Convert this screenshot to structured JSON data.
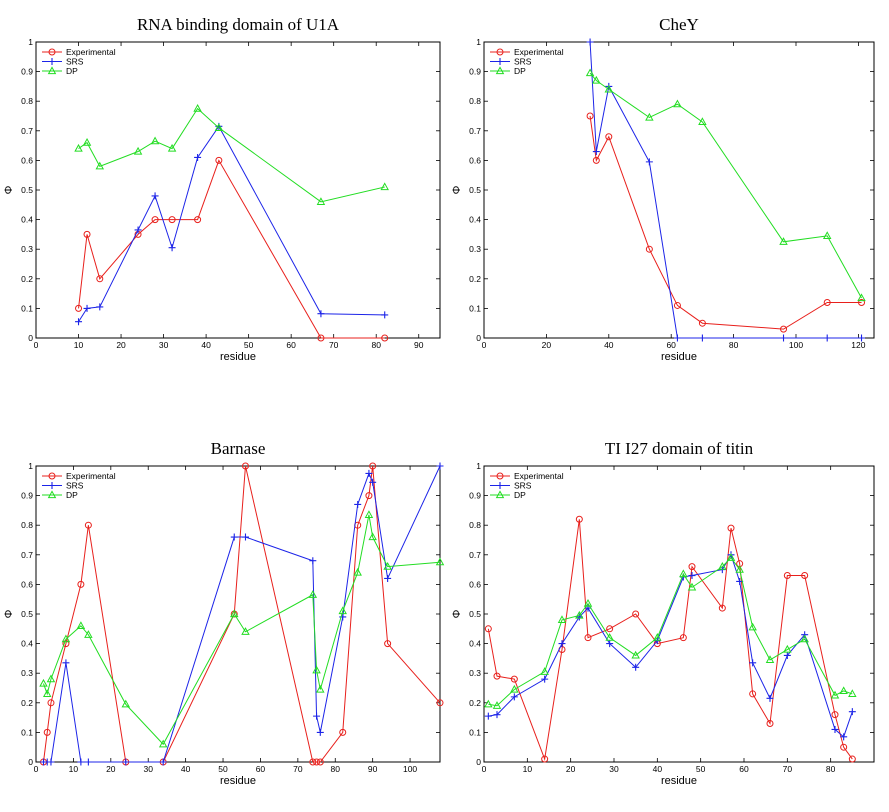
{
  "colors": {
    "Experimental": "#e8201c",
    "SRS": "#1c24e8",
    "DP": "#22dd22"
  },
  "markers": {
    "Experimental": "circle",
    "SRS": "plus",
    "DP": "triangle"
  },
  "chart_data": [
    {
      "type": "line",
      "title": "RNA binding domain of U1A",
      "xlabel": "residue",
      "ylabel": "Φ",
      "xlim": [
        0,
        95
      ],
      "ylim": [
        0,
        1
      ],
      "xticks": [
        0,
        10,
        20,
        30,
        40,
        50,
        60,
        70,
        80,
        90
      ],
      "yticks": [
        0,
        0.1,
        0.2,
        0.3,
        0.4,
        0.5,
        0.6,
        0.7,
        0.8,
        0.9,
        1
      ],
      "legend": "top-left",
      "series": [
        {
          "name": "Experimental",
          "x": [
            10,
            12,
            15,
            24,
            28,
            32,
            38,
            43,
            67,
            82
          ],
          "y": [
            0.1,
            0.35,
            0.2,
            0.35,
            0.4,
            0.4,
            0.4,
            0.6,
            0.0,
            0.0
          ]
        },
        {
          "name": "SRS",
          "x": [
            10,
            12,
            15,
            24,
            28,
            32,
            38,
            43,
            67,
            82
          ],
          "y": [
            0.055,
            0.1,
            0.105,
            0.365,
            0.48,
            0.305,
            0.61,
            0.715,
            0.082,
            0.078
          ]
        },
        {
          "name": "DP",
          "x": [
            10,
            12,
            15,
            24,
            28,
            32,
            38,
            43,
            67,
            82
          ],
          "y": [
            0.64,
            0.66,
            0.58,
            0.63,
            0.665,
            0.64,
            0.775,
            0.71,
            0.46,
            0.51
          ]
        }
      ]
    },
    {
      "type": "line",
      "title": "CheY",
      "xlabel": "residue",
      "ylabel": "Φ",
      "xlim": [
        0,
        125
      ],
      "ylim": [
        0,
        1
      ],
      "xticks": [
        0,
        20,
        40,
        60,
        80,
        100,
        120
      ],
      "yticks": [
        0,
        0.1,
        0.2,
        0.3,
        0.4,
        0.5,
        0.6,
        0.7,
        0.8,
        0.9,
        1
      ],
      "legend": "top-left",
      "series": [
        {
          "name": "Experimental",
          "x": [
            34,
            36,
            40,
            53,
            62,
            70,
            96,
            110,
            121
          ],
          "y": [
            0.75,
            0.6,
            0.68,
            0.3,
            0.11,
            0.05,
            0.03,
            0.12,
            0.12
          ]
        },
        {
          "name": "SRS",
          "x": [
            34,
            36,
            40,
            53,
            62,
            70,
            96,
            110,
            121
          ],
          "y": [
            1.0,
            0.63,
            0.85,
            0.595,
            0.0,
            0.0,
            0.0,
            0.0,
            0.0
          ]
        },
        {
          "name": "DP",
          "x": [
            34,
            36,
            40,
            53,
            62,
            70,
            96,
            110,
            121
          ],
          "y": [
            0.895,
            0.87,
            0.84,
            0.745,
            0.79,
            0.73,
            0.325,
            0.345,
            0.135
          ]
        }
      ]
    },
    {
      "type": "line",
      "title": "Barnase",
      "xlabel": "residue",
      "ylabel": "Φ",
      "xlim": [
        0,
        108
      ],
      "ylim": [
        0,
        1
      ],
      "xticks": [
        0,
        10,
        20,
        30,
        40,
        50,
        60,
        70,
        80,
        90,
        100
      ],
      "yticks": [
        0,
        0.1,
        0.2,
        0.3,
        0.4,
        0.5,
        0.6,
        0.7,
        0.8,
        0.9,
        1
      ],
      "legend": "top-left",
      "series": [
        {
          "name": "Experimental",
          "x": [
            2,
            3,
            4,
            8,
            12,
            14,
            24,
            34,
            53,
            56,
            74,
            75,
            76,
            82,
            86,
            89,
            90,
            94,
            108
          ],
          "y": [
            0.0,
            0.1,
            0.2,
            0.4,
            0.6,
            0.8,
            0.0,
            0.0,
            0.5,
            1.0,
            0.0,
            0.0,
            0.0,
            0.1,
            0.8,
            0.9,
            1.0,
            0.4,
            0.2
          ]
        },
        {
          "name": "SRS",
          "x": [
            2,
            3,
            4,
            8,
            12,
            14,
            24,
            34,
            53,
            56,
            74,
            75,
            76,
            82,
            86,
            89,
            90,
            94,
            108
          ],
          "y": [
            0.0,
            0.0,
            0.0,
            0.335,
            0.0,
            0.0,
            0.0,
            0.0,
            0.76,
            0.76,
            0.68,
            0.155,
            0.1,
            0.49,
            0.87,
            0.975,
            0.945,
            0.62,
            1.0
          ]
        },
        {
          "name": "DP",
          "x": [
            2,
            3,
            4,
            8,
            12,
            14,
            24,
            34,
            53,
            56,
            74,
            75,
            76,
            82,
            86,
            89,
            90,
            94,
            108
          ],
          "y": [
            0.265,
            0.23,
            0.28,
            0.415,
            0.46,
            0.43,
            0.195,
            0.06,
            0.5,
            0.44,
            0.565,
            0.31,
            0.245,
            0.51,
            0.64,
            0.835,
            0.76,
            0.66,
            0.675
          ]
        }
      ]
    },
    {
      "type": "line",
      "title": "TI I27 domain of titin",
      "xlabel": "residue",
      "ylabel": "Φ",
      "xlim": [
        0,
        90
      ],
      "ylim": [
        0,
        1
      ],
      "xticks": [
        0,
        10,
        20,
        30,
        40,
        50,
        60,
        70,
        80
      ],
      "yticks": [
        0,
        0.1,
        0.2,
        0.3,
        0.4,
        0.5,
        0.6,
        0.7,
        0.8,
        0.9,
        1
      ],
      "legend": "top-left",
      "series": [
        {
          "name": "Experimental",
          "x": [
            1,
            3,
            7,
            14,
            18,
            22,
            24,
            29,
            35,
            40,
            46,
            48,
            55,
            57,
            59,
            62,
            66,
            70,
            74,
            81,
            83,
            85
          ],
          "y": [
            0.45,
            0.29,
            0.28,
            0.01,
            0.38,
            0.82,
            0.42,
            0.45,
            0.5,
            0.4,
            0.42,
            0.66,
            0.52,
            0.79,
            0.67,
            0.23,
            0.13,
            0.63,
            0.63,
            0.16,
            0.05,
            0.01
          ]
        },
        {
          "name": "SRS",
          "x": [
            1,
            3,
            7,
            14,
            18,
            22,
            24,
            29,
            35,
            40,
            46,
            48,
            55,
            57,
            59,
            62,
            66,
            70,
            74,
            81,
            83,
            85
          ],
          "y": [
            0.155,
            0.16,
            0.22,
            0.28,
            0.4,
            0.49,
            0.52,
            0.4,
            0.32,
            0.41,
            0.625,
            0.63,
            0.65,
            0.7,
            0.61,
            0.335,
            0.215,
            0.36,
            0.43,
            0.11,
            0.085,
            0.17
          ]
        },
        {
          "name": "DP",
          "x": [
            1,
            3,
            7,
            14,
            18,
            22,
            24,
            29,
            35,
            40,
            46,
            48,
            55,
            57,
            59,
            62,
            66,
            70,
            74,
            81,
            83,
            85
          ],
          "y": [
            0.195,
            0.19,
            0.245,
            0.305,
            0.48,
            0.495,
            0.535,
            0.42,
            0.36,
            0.42,
            0.635,
            0.59,
            0.66,
            0.69,
            0.65,
            0.455,
            0.345,
            0.38,
            0.415,
            0.225,
            0.24,
            0.23
          ]
        }
      ]
    }
  ]
}
